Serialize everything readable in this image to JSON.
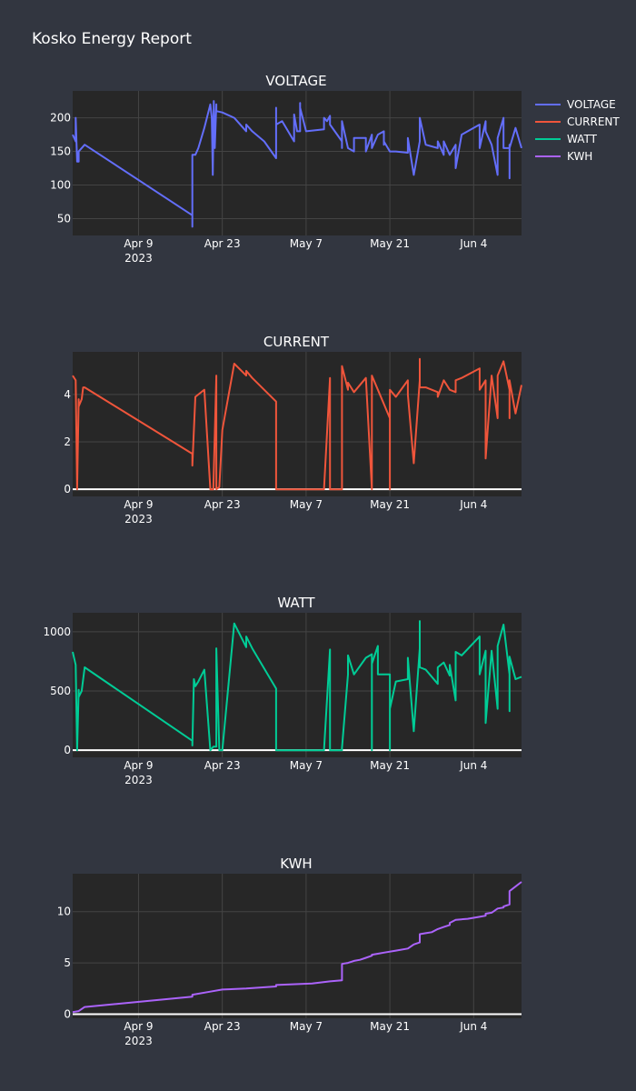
{
  "report": {
    "title": "Kosko Energy Report"
  },
  "legend": [
    {
      "name": "VOLTAGE",
      "color": "#636efa"
    },
    {
      "name": "CURRENT",
      "color": "#ef553b"
    },
    {
      "name": "WATT",
      "color": "#00cc96"
    },
    {
      "name": "KWH",
      "color": "#ab63fa"
    }
  ],
  "style": {
    "plot_bg": "#272727",
    "page_bg": "#323640",
    "grid": "#444444",
    "zeroline": "#ffffff",
    "text": "#ffffff"
  },
  "chart_data": [
    {
      "type": "line",
      "title": "VOLTAGE",
      "series": [
        {
          "name": "VOLTAGE",
          "color": "#636efa",
          "x": [
            "2023-03-29",
            "2023-03-29T12:00",
            "2023-03-29T12:00",
            "2023-03-29T18:00",
            "2023-03-30",
            "2023-03-30",
            "2023-03-31",
            "2023-04-18",
            "2023-04-18",
            "2023-04-18",
            "2023-04-18T12:00",
            "2023-04-19",
            "2023-04-20",
            "2023-04-21",
            "2023-04-21T06:00",
            "2023-04-21T10:00",
            "2023-04-21T14:00",
            "2023-04-21T18:00",
            "2023-04-22",
            "2023-04-22",
            "2023-04-22",
            "2023-04-23",
            "2023-04-25",
            "2023-04-27",
            "2023-04-27",
            "2023-04-28",
            "2023-04-30",
            "2023-05-02",
            "2023-05-02",
            "2023-05-02",
            "2023-05-03",
            "2023-05-05",
            "2023-05-05",
            "2023-05-05T12:00",
            "2023-05-06",
            "2023-05-06",
            "2023-05-06",
            "2023-05-07",
            "2023-05-10",
            "2023-05-10",
            "2023-05-10T12:00",
            "2023-05-11",
            "2023-05-11",
            "2023-05-13",
            "2023-05-13",
            "2023-05-13",
            "2023-05-14",
            "2023-05-15",
            "2023-05-15",
            "2023-05-17",
            "2023-05-17",
            "2023-05-17",
            "2023-05-18",
            "2023-05-18",
            "2023-05-19",
            "2023-05-20",
            "2023-05-20",
            "2023-05-20",
            "2023-05-20",
            "2023-05-21",
            "2023-05-22",
            "2023-05-24",
            "2023-05-24",
            "2023-05-25",
            "2023-05-26",
            "2023-05-26",
            "2023-05-26",
            "2023-05-26",
            "2023-05-27",
            "2023-05-29",
            "2023-05-29",
            "2023-05-30",
            "2023-05-30",
            "2023-05-31",
            "2023-06-01",
            "2023-06-01",
            "2023-06-02",
            "2023-06-05",
            "2023-06-05",
            "2023-06-06",
            "2023-06-06",
            "2023-06-07",
            "2023-06-08",
            "2023-06-08",
            "2023-06-09",
            "2023-06-09",
            "2023-06-10",
            "2023-06-10",
            "2023-06-10",
            "2023-06-10",
            "2023-06-11",
            "2023-06-12"
          ],
          "y": [
            175,
            165,
            200,
            135,
            135,
            150,
            160,
            55,
            38,
            145,
            145,
            155,
            185,
            220,
            200,
            115,
            225,
            155,
            220,
            210,
            210,
            208,
            200,
            180,
            190,
            180,
            165,
            140,
            215,
            190,
            195,
            165,
            205,
            180,
            180,
            222,
            215,
            180,
            183,
            200,
            195,
            203,
            190,
            165,
            155,
            195,
            155,
            150,
            170,
            170,
            170,
            150,
            175,
            155,
            175,
            180,
            160,
            165,
            165,
            150,
            150,
            148,
            170,
            115,
            165,
            165,
            165,
            200,
            160,
            155,
            165,
            145,
            165,
            145,
            160,
            125,
            175,
            190,
            155,
            195,
            180,
            160,
            115,
            170,
            200,
            155,
            155,
            160,
            110,
            155,
            185,
            155
          ]
        }
      ],
      "xaxis": {
        "type": "date",
        "ticks": [
          "Apr 9\n2023",
          "Apr 23",
          "May 7",
          "May 21",
          "Jun 4"
        ],
        "range": [
          "2023-03-29",
          "2023-06-12"
        ]
      },
      "yaxis": {
        "ticks": [
          50,
          100,
          150,
          200
        ],
        "range": [
          25,
          240
        ]
      }
    },
    {
      "type": "line",
      "title": "CURRENT",
      "series": [
        {
          "name": "CURRENT",
          "color": "#ef553b",
          "x": [
            "2023-03-29",
            "2023-03-29T12:00",
            "2023-03-29T18:00",
            "2023-03-30",
            "2023-03-30",
            "2023-03-30T12:00",
            "2023-03-30T18:00",
            "2023-03-31",
            "2023-04-18",
            "2023-04-18",
            "2023-04-18T06:00",
            "2023-04-18T12:00",
            "2023-04-19",
            "2023-04-20",
            "2023-04-21",
            "2023-04-21T12:00",
            "2023-04-22",
            "2023-04-22",
            "2023-04-22T12:00",
            "2023-04-23",
            "2023-04-25",
            "2023-04-27",
            "2023-04-27",
            "2023-04-28",
            "2023-05-02",
            "2023-05-02",
            "2023-05-08",
            "2023-05-10",
            "2023-05-11",
            "2023-05-11",
            "2023-05-13",
            "2023-05-13",
            "2023-05-14",
            "2023-05-14",
            "2023-05-15",
            "2023-05-17",
            "2023-05-18",
            "2023-05-18",
            "2023-05-18",
            "2023-05-19",
            "2023-05-19",
            "2023-05-21",
            "2023-05-21",
            "2023-05-21",
            "2023-05-22",
            "2023-05-24",
            "2023-05-24",
            "2023-05-25",
            "2023-05-26",
            "2023-05-26",
            "2023-05-26",
            "2023-05-26",
            "2023-05-27",
            "2023-05-29",
            "2023-05-29",
            "2023-05-30",
            "2023-05-31",
            "2023-05-31",
            "2023-06-01",
            "2023-06-01",
            "2023-06-02",
            "2023-06-05",
            "2023-06-05",
            "2023-06-06",
            "2023-06-06",
            "2023-06-07",
            "2023-06-08",
            "2023-06-08",
            "2023-06-09",
            "2023-06-10",
            "2023-06-10",
            "2023-06-10",
            "2023-06-10",
            "2023-06-11",
            "2023-06-12"
          ],
          "y": [
            4.8,
            4.6,
            0,
            3.8,
            3.5,
            3.8,
            4.3,
            4.3,
            1.5,
            1.0,
            2.5,
            3.9,
            4.0,
            4.2,
            0,
            0,
            4.8,
            0,
            0.1,
            2.5,
            5.3,
            4.8,
            5.0,
            4.7,
            3.7,
            0,
            0,
            0,
            4.7,
            0,
            0,
            5.2,
            4.2,
            4.5,
            4.1,
            4.7,
            0,
            4.1,
            4.8,
            4.2,
            4.2,
            3.0,
            0,
            4.2,
            3.9,
            4.6,
            4.0,
            1.1,
            4.6,
            4.7,
            5.5,
            4.3,
            4.3,
            4.1,
            3.9,
            4.6,
            4.2,
            4.2,
            4.1,
            4.6,
            4.7,
            5.1,
            4.2,
            4.6,
            1.3,
            4.8,
            3.0,
            4.8,
            5.4,
            4.2,
            4.3,
            3.0,
            4.6,
            3.2,
            4.4
          ]
        }
      ],
      "xaxis": {
        "type": "date",
        "ticks": [
          "Apr 9\n2023",
          "Apr 23",
          "May 7",
          "May 21",
          "Jun 4"
        ],
        "range": [
          "2023-03-29",
          "2023-06-12"
        ]
      },
      "yaxis": {
        "ticks": [
          0,
          2,
          4
        ],
        "range": [
          -0.3,
          5.8
        ],
        "zeroline": true
      }
    },
    {
      "type": "line",
      "title": "WATT",
      "series": [
        {
          "name": "WATT",
          "color": "#00cc96",
          "x": [
            "2023-03-29",
            "2023-03-29T12:00",
            "2023-03-29T18:00",
            "2023-03-30",
            "2023-03-30",
            "2023-03-30T12:00",
            "2023-03-31",
            "2023-04-18",
            "2023-04-18",
            "2023-04-18T06:00",
            "2023-04-18T12:00",
            "2023-04-19",
            "2023-04-20",
            "2023-04-21",
            "2023-04-21T12:00",
            "2023-04-22",
            "2023-04-22",
            "2023-04-22T12:00",
            "2023-04-23",
            "2023-04-25",
            "2023-04-27",
            "2023-04-27",
            "2023-04-28",
            "2023-05-02",
            "2023-05-02",
            "2023-05-08",
            "2023-05-10",
            "2023-05-11",
            "2023-05-11",
            "2023-05-13",
            "2023-05-13",
            "2023-05-14",
            "2023-05-14",
            "2023-05-15",
            "2023-05-17",
            "2023-05-18",
            "2023-05-18",
            "2023-05-18",
            "2023-05-19",
            "2023-05-19",
            "2023-05-21",
            "2023-05-21",
            "2023-05-21",
            "2023-05-22",
            "2023-05-24",
            "2023-05-24",
            "2023-05-25",
            "2023-05-26",
            "2023-05-26",
            "2023-05-26",
            "2023-05-26",
            "2023-05-27",
            "2023-05-29",
            "2023-05-29",
            "2023-05-30",
            "2023-05-31",
            "2023-05-31",
            "2023-06-01",
            "2023-06-01",
            "2023-06-02",
            "2023-06-05",
            "2023-06-05",
            "2023-06-06",
            "2023-06-06",
            "2023-06-07",
            "2023-06-08",
            "2023-06-08",
            "2023-06-09",
            "2023-06-10",
            "2023-06-10",
            "2023-06-10",
            "2023-06-10",
            "2023-06-11",
            "2023-06-12"
          ],
          "y": [
            830,
            720,
            0,
            510,
            450,
            500,
            700,
            80,
            40,
            600,
            540,
            580,
            680,
            0,
            30,
            30,
            860,
            0,
            0,
            1070,
            870,
            960,
            860,
            520,
            0,
            0,
            0,
            850,
            0,
            0,
            20,
            640,
            800,
            640,
            780,
            810,
            0,
            730,
            880,
            640,
            640,
            0,
            350,
            580,
            600,
            780,
            160,
            860,
            870,
            1090,
            700,
            680,
            560,
            700,
            740,
            630,
            720,
            420,
            830,
            800,
            960,
            640,
            840,
            230,
            840,
            350,
            880,
            1060,
            640,
            660,
            330,
            790,
            600,
            620
          ]
        }
      ],
      "xaxis": {
        "type": "date",
        "ticks": [
          "Apr 9\n2023",
          "Apr 23",
          "May 7",
          "May 21",
          "Jun 4"
        ],
        "range": [
          "2023-03-29",
          "2023-06-12"
        ]
      },
      "yaxis": {
        "ticks": [
          0,
          500,
          1000
        ],
        "range": [
          -60,
          1160
        ],
        "zeroline": true
      }
    },
    {
      "type": "line",
      "title": "KWH",
      "series": [
        {
          "name": "KWH",
          "color": "#ab63fa",
          "x": [
            "2023-03-29",
            "2023-03-30",
            "2023-03-31",
            "2023-04-18",
            "2023-04-18",
            "2023-04-21",
            "2023-04-23",
            "2023-04-27",
            "2023-05-02",
            "2023-05-02",
            "2023-05-08",
            "2023-05-11",
            "2023-05-13",
            "2023-05-13",
            "2023-05-13",
            "2023-05-14",
            "2023-05-15",
            "2023-05-16",
            "2023-05-17",
            "2023-05-18",
            "2023-05-18",
            "2023-05-19",
            "2023-05-20",
            "2023-05-22",
            "2023-05-24",
            "2023-05-25",
            "2023-05-26",
            "2023-05-26",
            "2023-05-26",
            "2023-05-27",
            "2023-05-28",
            "2023-05-29",
            "2023-05-30",
            "2023-05-31",
            "2023-05-31",
            "2023-06-01",
            "2023-06-03",
            "2023-06-04",
            "2023-06-05",
            "2023-06-06",
            "2023-06-06",
            "2023-06-07",
            "2023-06-08",
            "2023-06-09",
            "2023-06-09",
            "2023-06-10",
            "2023-06-10",
            "2023-06-10",
            "2023-06-12"
          ],
          "y": [
            0.2,
            0.3,
            0.7,
            1.7,
            1.9,
            2.2,
            2.4,
            2.5,
            2.7,
            2.85,
            3.0,
            3.2,
            3.3,
            4.5,
            4.9,
            5.0,
            5.2,
            5.3,
            5.5,
            5.7,
            5.8,
            5.9,
            6.0,
            6.2,
            6.4,
            6.8,
            7.0,
            7.5,
            7.8,
            7.9,
            8.0,
            8.3,
            8.5,
            8.7,
            8.9,
            9.2,
            9.3,
            9.4,
            9.5,
            9.6,
            9.8,
            9.9,
            10.3,
            10.4,
            10.5,
            10.7,
            11.0,
            12.0,
            12.9
          ]
        }
      ],
      "xaxis": {
        "type": "date",
        "ticks": [
          "Apr 9\n2023",
          "Apr 23",
          "May 7",
          "May 21",
          "Jun 4"
        ],
        "range": [
          "2023-03-29",
          "2023-06-12"
        ]
      },
      "yaxis": {
        "ticks": [
          0,
          5,
          10
        ],
        "range": [
          -0.4,
          13.7
        ],
        "zeroline": true
      }
    }
  ]
}
